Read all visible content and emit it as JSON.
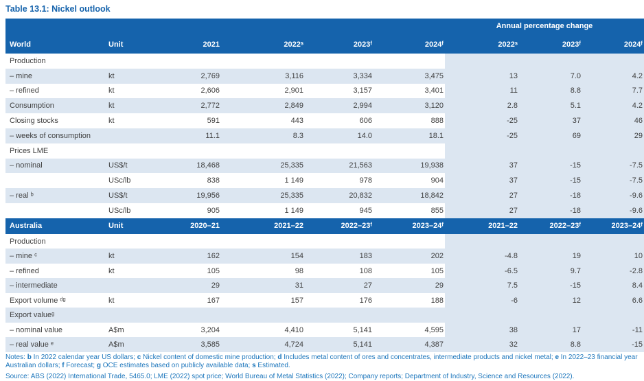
{
  "title": "Table 13.1: Nickel outlook",
  "colors": {
    "header-blue": "#1563ac",
    "row-alt": "#dce6f1",
    "title-blue": "#1563ac",
    "note-blue": "#1c76bc",
    "body-text": "#3f3f3f"
  },
  "table": {
    "apc_header": "Annual percentage change",
    "world": {
      "label": "World",
      "unit_header": "Unit",
      "year_cols": [
        "2021",
        "2022ˢ",
        "2023ᶠ",
        "2024ᶠ"
      ],
      "apc_cols": [
        "2022ˢ",
        "2023ᶠ",
        "2024ᶠ"
      ],
      "rows": [
        {
          "label": "Production",
          "unit": "",
          "values": [
            "",
            "",
            "",
            ""
          ],
          "apc": [
            "",
            "",
            ""
          ]
        },
        {
          "label": "– mine",
          "unit": "kt",
          "values": [
            "2,769",
            "3,116",
            "3,334",
            "3,475"
          ],
          "apc": [
            "13",
            "7.0",
            "4.2"
          ]
        },
        {
          "label": "– refined",
          "unit": "kt",
          "values": [
            "2,606",
            "2,901",
            "3,157",
            "3,401"
          ],
          "apc": [
            "11",
            "8.8",
            "7.7"
          ]
        },
        {
          "label": "Consumption",
          "unit": "kt",
          "values": [
            "2,772",
            "2,849",
            "2,994",
            "3,120"
          ],
          "apc": [
            "2.8",
            "5.1",
            "4.2"
          ]
        },
        {
          "label": "Closing stocks",
          "unit": "kt",
          "values": [
            "591",
            "443",
            "606",
            "888"
          ],
          "apc": [
            "-25",
            "37",
            "46"
          ]
        },
        {
          "label": "– weeks of consumption",
          "unit": "",
          "values": [
            "11.1",
            "8.3",
            "14.0",
            "18.1"
          ],
          "apc": [
            "-25",
            "69",
            "29"
          ]
        },
        {
          "label": "Prices LME",
          "unit": "",
          "values": [
            "",
            "",
            "",
            ""
          ],
          "apc": [
            "",
            "",
            ""
          ]
        },
        {
          "label": "– nominal",
          "unit": "US$/t",
          "values": [
            "18,468",
            "25,335",
            "21,563",
            "19,938"
          ],
          "apc": [
            "37",
            "-15",
            "-7.5"
          ]
        },
        {
          "label": "",
          "unit": "USc/lb",
          "values": [
            "838",
            "1 149",
            "978",
            "904"
          ],
          "apc": [
            "37",
            "-15",
            "-7.5"
          ]
        },
        {
          "label": "– real ᵇ",
          "unit": "US$/t",
          "values": [
            "19,956",
            "25,335",
            "20,832",
            "18,842"
          ],
          "apc": [
            "27",
            "-18",
            "-9.6"
          ]
        },
        {
          "label": "",
          "unit": "USc/lb",
          "values": [
            "905",
            "1 149",
            "945",
            "855"
          ],
          "apc": [
            "27",
            "-18",
            "-9.6"
          ]
        }
      ]
    },
    "australia": {
      "label": "Australia",
      "unit_header": "Unit",
      "year_cols": [
        "2020–21",
        "2021–22",
        "2022–23ᶠ",
        "2023–24ᶠ"
      ],
      "apc_cols": [
        "2021–22",
        "2022–23ᶠ",
        "2023–24ᶠ"
      ],
      "rows": [
        {
          "label": "Production",
          "unit": "",
          "values": [
            "",
            "",
            "",
            ""
          ],
          "apc": [
            "",
            "",
            ""
          ]
        },
        {
          "label": "– mine ᶜ",
          "unit": "kt",
          "values": [
            "162",
            "154",
            "183",
            "202"
          ],
          "apc": [
            "-4.8",
            "19",
            "10"
          ]
        },
        {
          "label": "– refined",
          "unit": "kt",
          "values": [
            "105",
            "98",
            "108",
            "105"
          ],
          "apc": [
            "-6.5",
            "9.7",
            "-2.8"
          ]
        },
        {
          "label": "– intermediate",
          "unit": "",
          "values": [
            "29",
            "31",
            "27",
            "29"
          ],
          "apc": [
            "7.5",
            "-15",
            "8.4"
          ]
        },
        {
          "label": "Export volume ᵈᵍ",
          "unit": "kt",
          "values": [
            "167",
            "157",
            "176",
            "188"
          ],
          "apc": [
            "-6",
            "12",
            "6.6"
          ]
        },
        {
          "label": "Export valueᵍ",
          "unit": "",
          "values": [
            "",
            "",
            "",
            ""
          ],
          "apc": [
            "",
            "",
            ""
          ]
        },
        {
          "label": "– nominal value",
          "unit": "A$m",
          "values": [
            "3,204",
            "4,410",
            "5,141",
            "4,595"
          ],
          "apc": [
            "38",
            "17",
            "-11"
          ]
        },
        {
          "label": "– real value ᵉ",
          "unit": "A$m",
          "values": [
            "3,585",
            "4,724",
            "5,141",
            "4,387"
          ],
          "apc": [
            "32",
            "8.8",
            "-15"
          ]
        }
      ]
    }
  },
  "notes": {
    "segments": [
      {
        "t": "Notes: ",
        "b": false
      },
      {
        "t": "b",
        "b": true
      },
      {
        "t": " In 2022 calendar year US dollars; ",
        "b": false
      },
      {
        "t": "c",
        "b": true
      },
      {
        "t": " Nickel content of domestic mine production; ",
        "b": false
      },
      {
        "t": "d",
        "b": true
      },
      {
        "t": " Includes metal content of ores and concentrates, intermediate products and nickel metal; ",
        "b": false
      },
      {
        "t": "e",
        "b": true
      },
      {
        "t": " In 2022–23 financial year Australian dollars; ",
        "b": false
      },
      {
        "t": "f",
        "b": true
      },
      {
        "t": " Forecast; ",
        "b": false
      },
      {
        "t": "g",
        "b": true
      },
      {
        "t": " OCE estimates based on publicly available data; ",
        "b": false
      },
      {
        "t": "s",
        "b": true
      },
      {
        "t": " Estimated.",
        "b": false
      }
    ]
  },
  "source": {
    "text": "Source: ABS (2022) International Trade, 5465.0; LME (2022) spot price; World Bureau of Metal Statistics (2022); Company reports; Department of Industry, Science and Resources (2022)."
  }
}
